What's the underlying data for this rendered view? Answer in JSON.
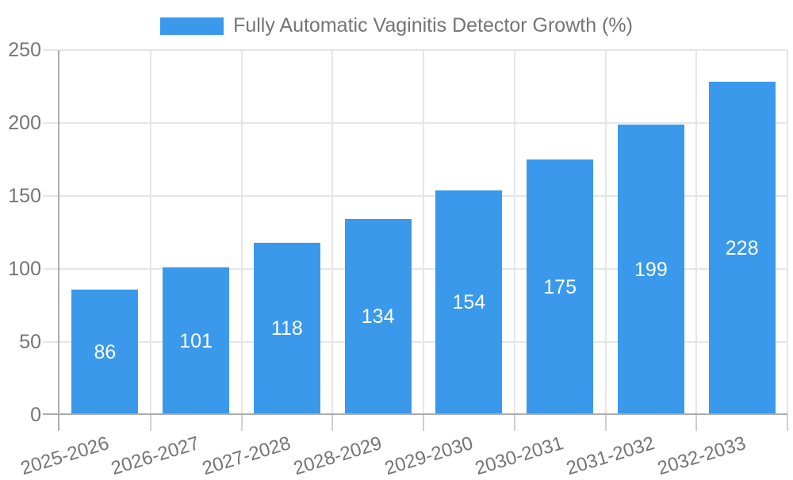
{
  "chart_data": {
    "type": "bar",
    "title": "Fully Automatic Vaginitis Detector Growth (%)",
    "categories": [
      "2025-2026",
      "2026-2027",
      "2027-2028",
      "2028-2029",
      "2029-2030",
      "2030-2031",
      "2031-2032",
      "2032-2033"
    ],
    "series": [
      {
        "name": "Fully Automatic Vaginitis Detector Growth (%)",
        "values": [
          86,
          101,
          118,
          134,
          154,
          175,
          199,
          228
        ],
        "color": "#3b99ec"
      }
    ],
    "xlabel": "",
    "ylabel": "",
    "ylim": [
      0,
      250
    ],
    "yticks": [
      0,
      50,
      100,
      150,
      200,
      250
    ],
    "grid": true,
    "legend_position": "top-center",
    "bar_label_color": "#ffffff",
    "axis_text_color": "#757575",
    "gridline_color": "#e6e6e6",
    "axis_line_color": "#adadad"
  }
}
